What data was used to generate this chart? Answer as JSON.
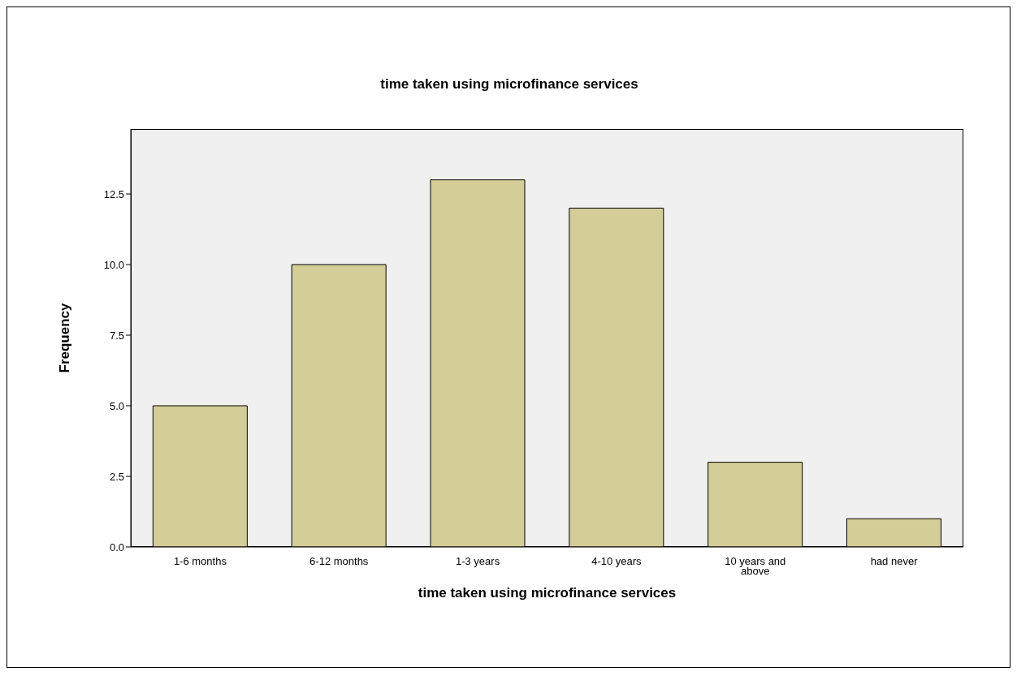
{
  "chart_data": {
    "type": "bar",
    "title": "time taken using microfinance services",
    "xlabel": "time taken using microfinance services",
    "ylabel": "Frequency",
    "categories": [
      "1-6 months",
      "6-12 months",
      "1-3 years",
      "4-10 years",
      "10 years and above",
      "had never"
    ],
    "values": [
      5,
      10,
      13,
      12,
      3,
      1
    ],
    "color": "#d3ce97",
    "ylim": [
      0,
      14.8
    ],
    "yticks": [
      {
        "value": 0,
        "label": "0.0"
      },
      {
        "value": 2.5,
        "label": "2.5"
      },
      {
        "value": 5,
        "label": "5.0"
      },
      {
        "value": 7.5,
        "label": "7.5"
      },
      {
        "value": 10,
        "label": "10.0"
      },
      {
        "value": 12.5,
        "label": "12.5"
      }
    ],
    "grid": false,
    "legend": false
  }
}
